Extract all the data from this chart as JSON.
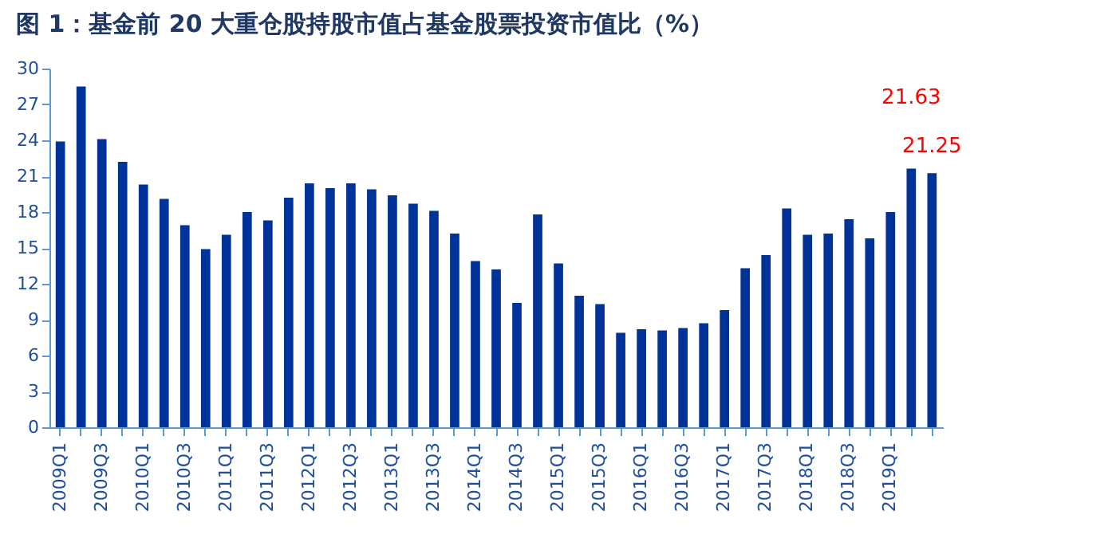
{
  "chart_data": {
    "type": "bar",
    "title": "图 1：基金前 20 大重仓股持股市值占基金股票投资市值比（%）",
    "categories": [
      "2009Q1",
      null,
      "2009Q3",
      null,
      "2010Q1",
      null,
      "2010Q3",
      null,
      "2011Q1",
      null,
      "2011Q3",
      null,
      "2012Q1",
      null,
      "2012Q3",
      null,
      "2013Q1",
      null,
      "2013Q3",
      null,
      "2014Q1",
      null,
      "2014Q3",
      null,
      "2015Q1",
      null,
      "2015Q3",
      null,
      "2016Q1",
      null,
      "2016Q3",
      null,
      "2017Q1",
      null,
      "2017Q3",
      null,
      "2018Q1",
      null,
      "2018Q3",
      null,
      "2019Q1",
      null,
      null
    ],
    "values": [
      23.9,
      28.5,
      24.1,
      22.2,
      20.3,
      19.1,
      16.9,
      14.9,
      16.1,
      18.0,
      17.3,
      19.2,
      20.4,
      20.0,
      20.4,
      19.9,
      19.4,
      18.7,
      18.1,
      16.2,
      13.9,
      13.2,
      10.4,
      17.8,
      13.7,
      11.0,
      10.3,
      7.9,
      8.2,
      8.1,
      8.3,
      8.7,
      9.8,
      13.3,
      14.4,
      18.3,
      16.1,
      16.2,
      17.4,
      15.8,
      18.0,
      21.63,
      21.25
    ],
    "value_labels": [
      null,
      null,
      null,
      null,
      null,
      null,
      null,
      null,
      null,
      null,
      null,
      null,
      null,
      null,
      null,
      null,
      null,
      null,
      null,
      null,
      null,
      null,
      null,
      null,
      null,
      null,
      null,
      null,
      null,
      null,
      null,
      null,
      null,
      null,
      null,
      null,
      null,
      null,
      null,
      null,
      null,
      "21.63",
      "21.25"
    ],
    "color": "#003399",
    "ylim": [
      0,
      30
    ],
    "yticks": [
      0,
      3,
      6,
      9,
      12,
      15,
      18,
      21,
      24,
      27,
      30
    ],
    "grid": false
  }
}
